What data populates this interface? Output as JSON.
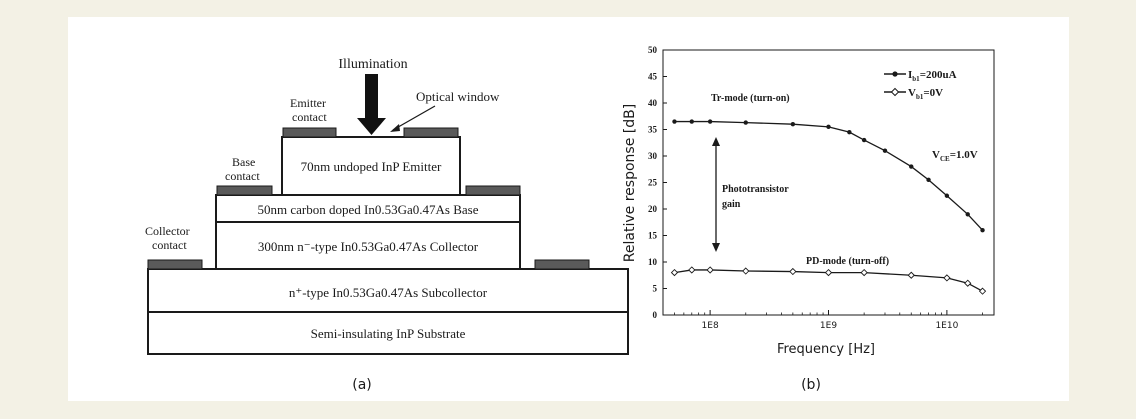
{
  "colors": {
    "background": "#f3f1e5",
    "figure_bg": "#ffffff",
    "ink": "#1a1a1a",
    "contact_pad": "#5a5a5a"
  },
  "diagram": {
    "caption": "(a)",
    "illumination_label": "Illumination",
    "optical_window_label": "Optical window",
    "emitter_contact": [
      "Emitter",
      "contact"
    ],
    "base_contact": [
      "Base",
      "contact"
    ],
    "collector_contact": [
      "Collector",
      "contact"
    ],
    "layers": {
      "emitter": "70nm undoped InP Emitter",
      "base": "50nm carbon doped In0.53Ga0.47As Base",
      "collector": "300nm n⁻-type In0.53Ga0.47As Collector",
      "subcollector": "n⁺-type In0.53Ga0.47As Subcollector",
      "substrate": "Semi-insulating InP Substrate"
    }
  },
  "plot": {
    "caption": "(b)",
    "ylabel": "Relative response  [dB]",
    "xlabel": "Frequency [Hz]",
    "yticks": [
      "0",
      "5",
      "10",
      "15",
      "20",
      "25",
      "30",
      "35",
      "40",
      "45",
      "50"
    ],
    "xticks": [
      "1E8",
      "1E9",
      "1E10"
    ],
    "legend": [
      {
        "label": "I_b1=200uA",
        "marker": "filled-circle"
      },
      {
        "label": "V_b1=0V",
        "marker": "open-diamond"
      }
    ],
    "annotations": {
      "tr_mode": "Tr-mode (turn-on)",
      "pd_mode": "PD-mode (turn-off)",
      "vce": "V_CE=1.0V",
      "gain_line1": "Phototransistor",
      "gain_line2": "gain"
    }
  },
  "chart_data": {
    "type": "scatter",
    "xlabel": "Frequency [Hz]",
    "ylabel": "Relative response  [dB]",
    "x_scale": "log",
    "xlim": [
      40000000,
      25000000000
    ],
    "ylim": [
      0,
      50
    ],
    "grid": false,
    "legend_position": "top-right",
    "series": [
      {
        "name": "I_b1=200uA",
        "marker": "filled-circle",
        "x": [
          50000000,
          70000000,
          100000000,
          200000000,
          500000000,
          1000000000,
          1500000000,
          2000000000,
          3000000000,
          5000000000,
          7000000000,
          10000000000,
          15000000000,
          20000000000
        ],
        "y": [
          36.5,
          36.5,
          36.5,
          36.3,
          36.0,
          35.5,
          34.5,
          33.0,
          31.0,
          28.0,
          25.5,
          22.5,
          19.0,
          16.0
        ]
      },
      {
        "name": "V_b1=0V",
        "marker": "open-diamond",
        "x": [
          50000000,
          70000000,
          100000000,
          200000000,
          500000000,
          1000000000,
          2000000000,
          5000000000,
          10000000000,
          15000000000,
          20000000000
        ],
        "y": [
          8.0,
          8.5,
          8.5,
          8.3,
          8.2,
          8.0,
          8.0,
          7.5,
          7.0,
          6.0,
          4.5
        ]
      }
    ]
  }
}
